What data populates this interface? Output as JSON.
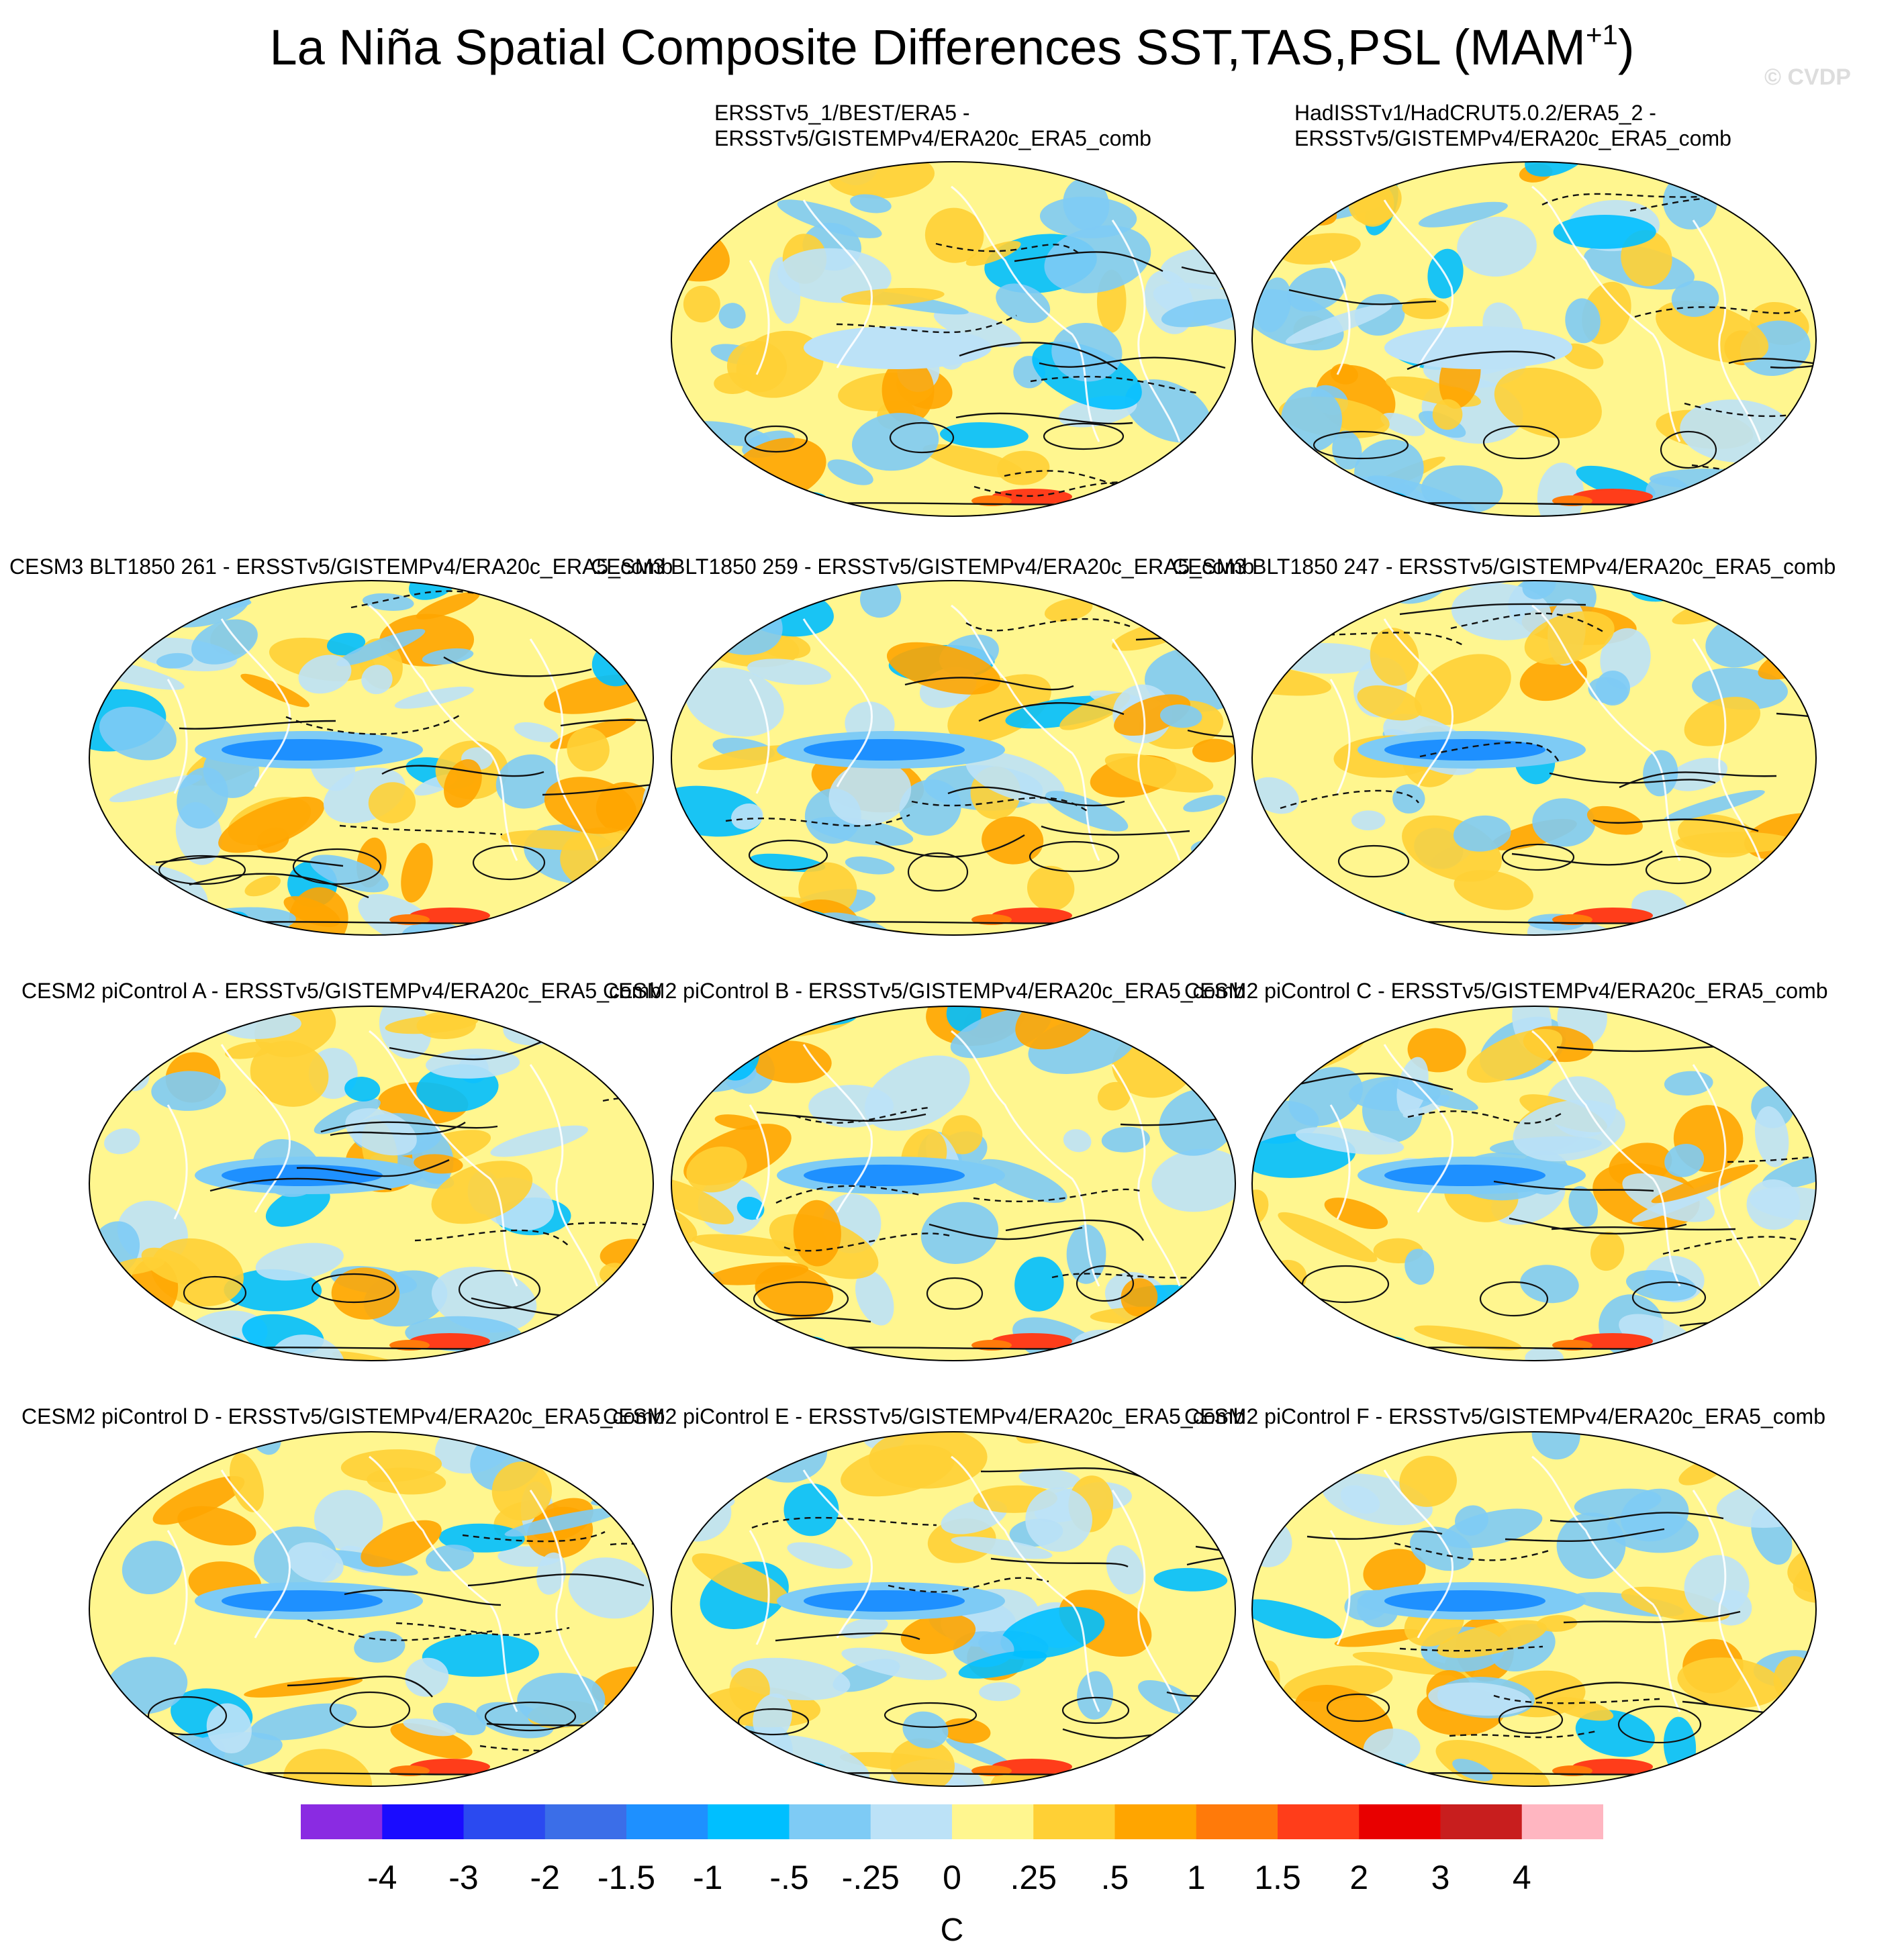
{
  "title": {
    "main": "La Niña Spatial Composite Differences SST,TAS,PSL (MAM",
    "superscript": "+1",
    "close": ")"
  },
  "watermark": "© CVDP",
  "panels": [
    {
      "id": "obs1",
      "title_line1": "ERSSTv5_1/BEST/ERA5 -",
      "title_line2": "ERSSTv5/GISTEMPv4/ERA20c_ERA5_comb"
    },
    {
      "id": "obs2",
      "title_line1": "HadISSTv1/HadCRUT5.0.2/ERA5_2 -",
      "title_line2": "ERSSTv5/GISTEMPv4/ERA20c_ERA5_comb"
    },
    {
      "id": "cesm3-261",
      "title_line1": "CESM3 BLT1850 261 - ERSSTv5/GISTEMPv4/ERA20c_ERA5_comb",
      "title_line2": ""
    },
    {
      "id": "cesm3-259",
      "title_line1": "CESM3 BLT1850 259 - ERSSTv5/GISTEMPv4/ERA20c_ERA5_comb",
      "title_line2": ""
    },
    {
      "id": "cesm3-247",
      "title_line1": "CESM3 BLT1850 247 - ERSSTv5/GISTEMPv4/ERA20c_ERA5_comb",
      "title_line2": ""
    },
    {
      "id": "cesm2-a",
      "title_line1": "CESM2 piControl A - ERSSTv5/GISTEMPv4/ERA20c_ERA5_comb",
      "title_line2": ""
    },
    {
      "id": "cesm2-b",
      "title_line1": "CESM2 piControl B - ERSSTv5/GISTEMPv4/ERA20c_ERA5_comb",
      "title_line2": ""
    },
    {
      "id": "cesm2-c",
      "title_line1": "CESM2 piControl C - ERSSTv5/GISTEMPv4/ERA20c_ERA5_comb",
      "title_line2": ""
    },
    {
      "id": "cesm2-d",
      "title_line1": "CESM2 piControl D - ERSSTv5/GISTEMPv4/ERA20c_ERA5_comb",
      "title_line2": ""
    },
    {
      "id": "cesm2-e",
      "title_line1": "CESM2 piControl E - ERSSTv5/GISTEMPv4/ERA20c_ERA5_comb",
      "title_line2": ""
    },
    {
      "id": "cesm2-f",
      "title_line1": "CESM2 piControl F - ERSSTv5/GISTEMPv4/ERA20c_ERA5_comb",
      "title_line2": ""
    }
  ],
  "colorbar": {
    "colors": [
      "#8a2be2",
      "#1a0cff",
      "#2b4af0",
      "#3b6ee8",
      "#1e90ff",
      "#00bfff",
      "#7ecbf5",
      "#bce2f7",
      "#fff68f",
      "#ffd035",
      "#ffa500",
      "#ff7a0a",
      "#ff3d1a",
      "#e80000",
      "#c81e1e",
      "#ffb6c1"
    ],
    "labels": [
      "-4",
      "-3",
      "-2",
      "-1.5",
      "-1",
      "-.5",
      "-.25",
      "0",
      ".25",
      ".5",
      "1",
      "1.5",
      "2",
      "3",
      "4"
    ],
    "units": "C"
  }
}
